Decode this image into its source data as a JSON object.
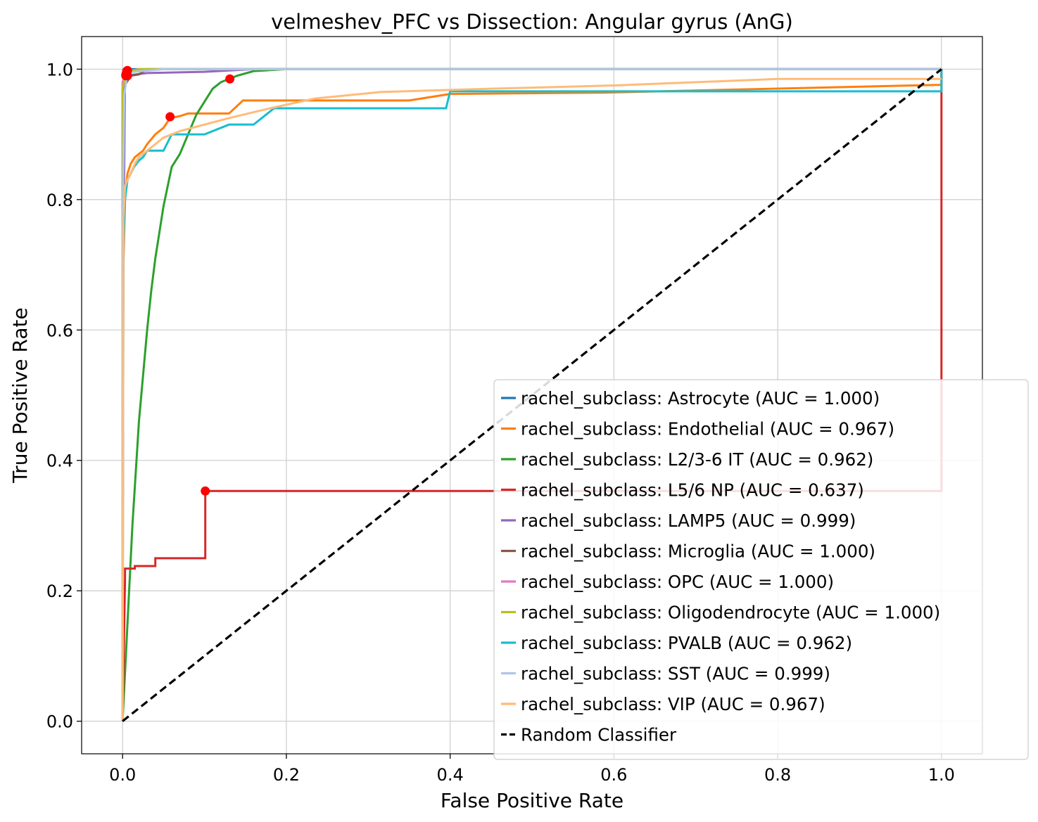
{
  "chart_data": {
    "type": "line",
    "title": "velmeshev_PFC vs Dissection: Angular gyrus (AnG)",
    "xlabel": "False Positive Rate",
    "ylabel": "True Positive Rate",
    "xlim": [
      -0.05,
      1.05
    ],
    "ylim": [
      -0.05,
      1.05
    ],
    "xticks": [
      0.0,
      0.2,
      0.4,
      0.6,
      0.8,
      1.0
    ],
    "yticks": [
      0.0,
      0.2,
      0.4,
      0.6,
      0.8,
      1.0
    ],
    "xtick_labels": [
      "0.0",
      "0.2",
      "0.4",
      "0.6",
      "0.8",
      "1.0"
    ],
    "ytick_labels": [
      "0.0",
      "0.2",
      "0.4",
      "0.6",
      "0.8",
      "1.0"
    ],
    "grid": true,
    "legend_position": "lower-right",
    "marker_color": "#ff0000",
    "series": [
      {
        "name": "rachel_subclass: Astrocyte (AUC = 1.000)",
        "color": "#1f77b4",
        "x": [
          0,
          0,
          0.003,
          0.01,
          0.72,
          1.0
        ],
        "y": [
          0,
          0.95,
          0.995,
          1.0,
          1.0,
          1.0
        ],
        "marker": [
          0.005,
          0.995
        ]
      },
      {
        "name": "rachel_subclass: Endothelial (AUC = 0.967)",
        "color": "#ff7f0e",
        "x": [
          0,
          0.001,
          0.003,
          0.006,
          0.01,
          0.015,
          0.02,
          0.025,
          0.03,
          0.04,
          0.05,
          0.058,
          0.07,
          0.08,
          0.13,
          0.147,
          0.35,
          0.4,
          0.585,
          1.0,
          1.0
        ],
        "y": [
          0,
          0.7,
          0.8,
          0.84,
          0.855,
          0.865,
          0.87,
          0.875,
          0.885,
          0.9,
          0.91,
          0.925,
          0.928,
          0.932,
          0.932,
          0.952,
          0.952,
          0.962,
          0.964,
          0.976,
          1.0
        ],
        "marker": [
          0.058,
          0.927
        ]
      },
      {
        "name": "rachel_subclass: L2/3-6 IT (AUC = 0.962)",
        "color": "#2ca02c",
        "x": [
          0,
          0.004,
          0.008,
          0.012,
          0.016,
          0.02,
          0.025,
          0.03,
          0.035,
          0.04,
          0.045,
          0.05,
          0.055,
          0.06,
          0.07,
          0.08,
          0.09,
          0.1,
          0.11,
          0.12,
          0.13,
          0.14,
          0.16,
          0.2,
          1.0
        ],
        "y": [
          0,
          0.1,
          0.2,
          0.3,
          0.38,
          0.46,
          0.53,
          0.6,
          0.66,
          0.71,
          0.75,
          0.79,
          0.82,
          0.85,
          0.87,
          0.9,
          0.93,
          0.95,
          0.97,
          0.98,
          0.985,
          0.99,
          0.997,
          1.0,
          1.0
        ],
        "marker": [
          0.131,
          0.985
        ]
      },
      {
        "name": "rachel_subclass: L5/6 NP (AUC = 0.637)",
        "color": "#d62728",
        "x": [
          0,
          0.003,
          0.003,
          0.015,
          0.015,
          0.04,
          0.04,
          0.101,
          0.101,
          1.0,
          1.0
        ],
        "y": [
          0,
          0.22,
          0.234,
          0.234,
          0.238,
          0.238,
          0.25,
          0.25,
          0.353,
          0.353,
          1.0
        ],
        "marker": [
          0.101,
          0.353
        ]
      },
      {
        "name": "rachel_subclass: LAMP5 (AUC = 0.999)",
        "color": "#9467bd",
        "x": [
          0,
          0,
          0.003,
          0.03,
          0.1,
          0.16,
          1.0
        ],
        "y": [
          0,
          0.55,
          0.99,
          0.994,
          0.996,
          1.0,
          1.0
        ],
        "marker": [
          0.004,
          0.992
        ]
      },
      {
        "name": "rachel_subclass: Microglia (AUC = 1.000)",
        "color": "#8c564b",
        "x": [
          0,
          0,
          0.01,
          0.02,
          0.03,
          1.0
        ],
        "y": [
          0,
          0.97,
          0.99,
          0.992,
          1.0,
          1.0
        ],
        "marker": [
          0.006,
          0.99
        ]
      },
      {
        "name": "rachel_subclass: OPC (AUC = 1.000)",
        "color": "#e377c2",
        "x": [
          0,
          0,
          0.005,
          0.05,
          1.0
        ],
        "y": [
          0,
          0.98,
          0.997,
          1.0,
          1.0
        ],
        "marker": [
          0.006,
          0.998
        ]
      },
      {
        "name": "rachel_subclass: Oligodendrocyte (AUC = 1.000)",
        "color": "#bcbd22",
        "x": [
          0,
          0,
          0.004,
          0.02,
          1.0
        ],
        "y": [
          0,
          0.97,
          0.996,
          1.0,
          1.0
        ],
        "marker": [
          0.005,
          0.997
        ]
      },
      {
        "name": "rachel_subclass: PVALB (AUC = 0.962)",
        "color": "#17becf",
        "x": [
          0,
          0.001,
          0.003,
          0.006,
          0.01,
          0.014,
          0.02,
          0.025,
          0.03,
          0.05,
          0.06,
          0.1,
          0.13,
          0.16,
          0.185,
          0.24,
          0.395,
          0.4,
          1.0,
          1.0
        ],
        "y": [
          0,
          0.73,
          0.8,
          0.83,
          0.84,
          0.85,
          0.86,
          0.865,
          0.875,
          0.875,
          0.9,
          0.9,
          0.915,
          0.915,
          0.94,
          0.94,
          0.94,
          0.966,
          0.966,
          1.0
        ],
        "marker": [
          0.005,
          0.99
        ]
      },
      {
        "name": "rachel_subclass: SST (AUC = 0.999)",
        "color": "#aec7e8",
        "x": [
          0,
          0,
          0.002,
          0.006,
          0.05,
          1.0
        ],
        "y": [
          0,
          0.75,
          0.96,
          0.995,
          1.0,
          1.0
        ],
        "marker": [
          0.004,
          0.99
        ]
      },
      {
        "name": "rachel_subclass: VIP (AUC = 0.967)",
        "color": "#ffbb78",
        "x": [
          0,
          0.001,
          0.003,
          0.006,
          0.01,
          0.015,
          0.02,
          0.03,
          0.04,
          0.05,
          0.07,
          0.1,
          0.13,
          0.18,
          0.235,
          0.315,
          0.45,
          0.6,
          0.8,
          1.0
        ],
        "y": [
          0,
          0.77,
          0.82,
          0.83,
          0.84,
          0.855,
          0.865,
          0.875,
          0.885,
          0.895,
          0.905,
          0.915,
          0.925,
          0.94,
          0.955,
          0.965,
          0.97,
          0.975,
          0.985,
          0.985
        ],
        "marker": [
          0.004,
          0.99
        ]
      },
      {
        "name": "Random Classifier",
        "color": "#000000",
        "dashed": true,
        "x": [
          0,
          1
        ],
        "y": [
          0,
          1
        ]
      }
    ]
  }
}
